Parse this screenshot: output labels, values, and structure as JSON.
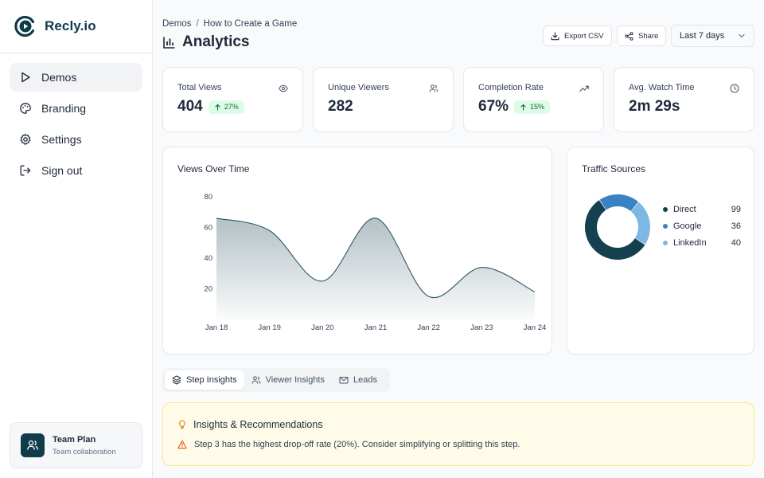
{
  "app": {
    "name": "Recly.io"
  },
  "sidebar": {
    "items": [
      {
        "label": "Demos",
        "icon": "play-icon",
        "active": true
      },
      {
        "label": "Branding",
        "icon": "palette-icon"
      },
      {
        "label": "Settings",
        "icon": "gear-icon"
      },
      {
        "label": "Sign out",
        "icon": "sign-out-icon"
      }
    ],
    "plan": {
      "title": "Team Plan",
      "subtitle": "Team collaboration",
      "icon": "users-icon"
    }
  },
  "header": {
    "breadcrumb": [
      "Demos",
      "How to Create a Game"
    ],
    "title": "Analytics",
    "export_label": "Export CSV",
    "share_label": "Share",
    "range_label": "Last 7 days"
  },
  "stats": [
    {
      "label": "Total Views",
      "value": "404",
      "badge": "27%",
      "icon": "eye-icon"
    },
    {
      "label": "Unique Viewers",
      "value": "282",
      "icon": "users-icon"
    },
    {
      "label": "Completion Rate",
      "value": "67%",
      "badge": "15%",
      "icon": "trending-up-icon"
    },
    {
      "label": "Avg. Watch Time",
      "value": "2m 29s",
      "icon": "clock-icon"
    }
  ],
  "views_chart": {
    "title": "Views Over Time"
  },
  "traffic": {
    "title": "Traffic Sources",
    "sources": [
      {
        "name": "Direct",
        "value": "99"
      },
      {
        "name": "Google",
        "value": "36"
      },
      {
        "name": "LinkedIn",
        "value": "40"
      }
    ]
  },
  "tabs": [
    {
      "label": "Step Insights",
      "icon": "layers-icon",
      "active": true
    },
    {
      "label": "Viewer Insights",
      "icon": "users-icon"
    },
    {
      "label": "Leads",
      "icon": "mail-icon"
    }
  ],
  "insights": {
    "title": "Insights & Recommendations",
    "message": "Step 3 has the highest drop-off rate (20%). Consider simplifying or splitting this step."
  },
  "colors": {
    "brand": "#0f3b4a",
    "badge_bg": "#dcfce7",
    "badge_text": "#166534",
    "direct": "#15404f",
    "google": "#3b82c4",
    "linkedin": "#7cb8e2",
    "warning": "#f59e0b"
  },
  "chart_data": [
    {
      "type": "area",
      "title": "Views Over Time",
      "x": [
        "Jan 18",
        "Jan 19",
        "Jan 20",
        "Jan 21",
        "Jan 22",
        "Jan 23",
        "Jan 24"
      ],
      "values": [
        66,
        58,
        25,
        66,
        15,
        34,
        18
      ],
      "ylim": [
        0,
        80
      ],
      "yticks": [
        0,
        20,
        40,
        60,
        80
      ],
      "grid": false
    },
    {
      "type": "pie",
      "title": "Traffic Sources",
      "donut": true,
      "categories": [
        "Direct",
        "Google",
        "LinkedIn"
      ],
      "values": [
        99,
        36,
        40
      ],
      "colors": [
        "#15404f",
        "#3b82c4",
        "#7cb8e2"
      ],
      "legend": "right"
    }
  ]
}
